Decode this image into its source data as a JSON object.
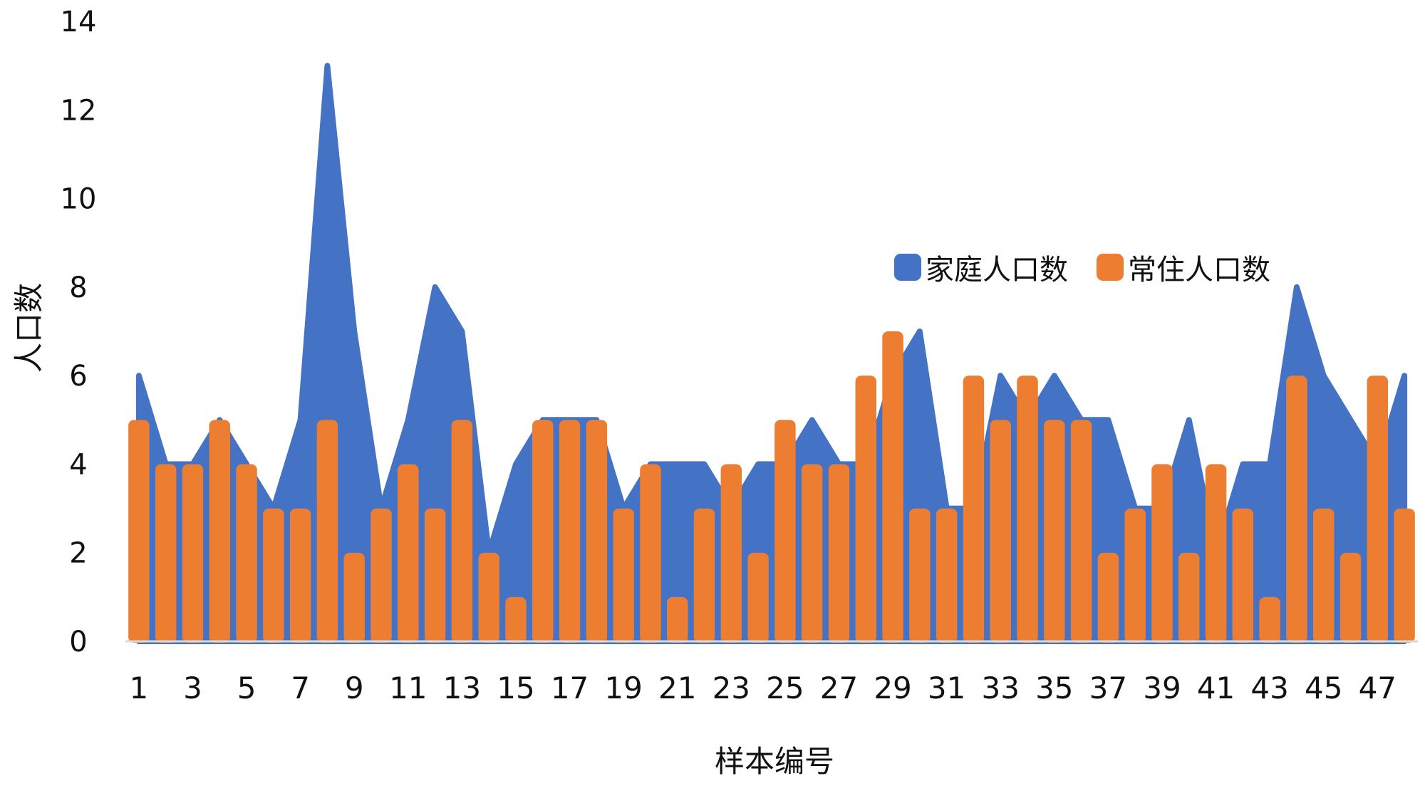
{
  "chart_data": {
    "type": "area+bar",
    "xlabel": "样本编号",
    "ylabel": "人口数",
    "ylim": [
      0,
      14
    ],
    "y_ticks": [
      0,
      2,
      4,
      6,
      8,
      10,
      12,
      14
    ],
    "categories": [
      1,
      2,
      3,
      4,
      5,
      6,
      7,
      8,
      9,
      10,
      11,
      12,
      13,
      14,
      15,
      16,
      17,
      18,
      19,
      20,
      21,
      22,
      23,
      24,
      25,
      26,
      27,
      28,
      29,
      30,
      31,
      32,
      33,
      34,
      35,
      36,
      37,
      38,
      39,
      40,
      41,
      42,
      43,
      44,
      45,
      46,
      47,
      48
    ],
    "x_tick_labels": [
      "1",
      "3",
      "5",
      "7",
      "9",
      "11",
      "13",
      "15",
      "17",
      "19",
      "21",
      "23",
      "25",
      "27",
      "29",
      "31",
      "33",
      "35",
      "37",
      "39",
      "41",
      "43",
      "45",
      "47"
    ],
    "legend_position": "upper-right",
    "grid": false,
    "series": [
      {
        "name": "家庭人口数",
        "type": "area",
        "color": "#4472C4",
        "values": [
          6,
          4,
          4,
          5,
          4,
          3,
          5,
          13,
          7,
          3,
          5,
          8,
          7,
          2,
          4,
          5,
          5,
          5,
          3,
          4,
          4,
          4,
          3,
          4,
          4,
          5,
          4,
          4,
          6,
          7,
          3,
          3,
          6,
          5,
          6,
          5,
          5,
          3,
          3,
          5,
          2,
          4,
          4,
          8,
          6,
          5,
          4,
          6
        ]
      },
      {
        "name": "常住人口数",
        "type": "bar",
        "color": "#ED7D31",
        "values": [
          5,
          4,
          4,
          5,
          4,
          3,
          3,
          5,
          2,
          3,
          4,
          3,
          5,
          2,
          1,
          5,
          5,
          5,
          3,
          4,
          1,
          3,
          4,
          2,
          5,
          4,
          4,
          6,
          7,
          3,
          3,
          6,
          5,
          6,
          5,
          5,
          2,
          3,
          4,
          2,
          4,
          3,
          1,
          6,
          3,
          2,
          6,
          3
        ]
      }
    ]
  }
}
